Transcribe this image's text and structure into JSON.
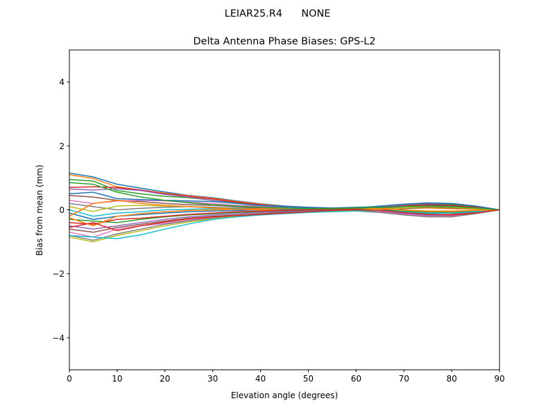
{
  "suptitle": "LEIAR25.R4      NONE",
  "chart_data": {
    "type": "line",
    "title": "Delta Antenna Phase Biases: GPS-L2",
    "xlabel": "Elevation angle (degrees)",
    "ylabel": "Bias from mean (mm)",
    "xlim": [
      0,
      90
    ],
    "ylim": [
      -5,
      5
    ],
    "xticks": [
      0,
      10,
      20,
      30,
      40,
      50,
      60,
      70,
      80,
      90
    ],
    "yticks": [
      -4,
      -2,
      0,
      2,
      4
    ],
    "grid": false,
    "legend": "none",
    "colors": [
      "#1f77b4",
      "#ff7f0e",
      "#2ca02c",
      "#d62728",
      "#9467bd",
      "#8c564b",
      "#e377c2",
      "#7f7f7f",
      "#bcbd22",
      "#17becf"
    ],
    "x": [
      0,
      5,
      10,
      15,
      20,
      25,
      30,
      35,
      40,
      45,
      50,
      55,
      60,
      65,
      70,
      75,
      80,
      85,
      90
    ],
    "series": [
      {
        "values": [
          1.15,
          1.03,
          0.8,
          0.68,
          0.56,
          0.45,
          0.38,
          0.28,
          0.19,
          0.12,
          0.08,
          0.06,
          0.08,
          0.1,
          0.14,
          0.18,
          0.17,
          0.1,
          0
        ]
      },
      {
        "values": [
          1.1,
          0.98,
          0.72,
          0.62,
          0.52,
          0.44,
          0.36,
          0.26,
          0.18,
          0.1,
          0.06,
          0.04,
          0.02,
          0.0,
          -0.04,
          -0.06,
          -0.05,
          -0.03,
          0
        ]
      },
      {
        "values": [
          0.95,
          0.9,
          0.6,
          0.5,
          0.42,
          0.38,
          0.3,
          0.22,
          0.14,
          0.08,
          0.04,
          0.02,
          0.04,
          0.08,
          0.12,
          0.2,
          0.18,
          0.1,
          0
        ]
      },
      {
        "values": [
          0.7,
          0.72,
          0.7,
          0.62,
          0.5,
          0.42,
          0.34,
          0.24,
          0.16,
          0.1,
          0.06,
          0.02,
          0.0,
          -0.06,
          -0.12,
          -0.16,
          -0.14,
          -0.08,
          0
        ]
      },
      {
        "values": [
          0.65,
          0.62,
          0.66,
          0.6,
          0.48,
          0.4,
          0.3,
          0.2,
          0.12,
          0.08,
          0.04,
          0.04,
          0.06,
          0.1,
          0.16,
          0.2,
          0.2,
          0.12,
          0
        ]
      },
      {
        "values": [
          0.45,
          0.4,
          0.3,
          0.26,
          0.2,
          0.16,
          0.14,
          0.1,
          0.06,
          0.04,
          0.02,
          0.0,
          0.02,
          0.04,
          0.06,
          0.08,
          0.06,
          0.04,
          0
        ]
      },
      {
        "values": [
          0.3,
          0.2,
          0.28,
          0.3,
          0.28,
          0.24,
          0.2,
          0.14,
          0.1,
          0.06,
          0.04,
          0.02,
          0.0,
          -0.02,
          -0.06,
          -0.1,
          -0.1,
          -0.06,
          0
        ]
      },
      {
        "values": [
          0.2,
          0.1,
          0.0,
          0.05,
          0.08,
          0.1,
          0.08,
          0.06,
          0.04,
          0.02,
          0.0,
          0.0,
          0.02,
          0.06,
          0.1,
          0.12,
          0.1,
          0.06,
          0
        ]
      },
      {
        "values": [
          0.1,
          -0.05,
          0.12,
          0.14,
          0.12,
          0.1,
          0.06,
          0.04,
          0.02,
          0.0,
          -0.02,
          -0.02,
          0.0,
          0.02,
          0.04,
          0.06,
          0.04,
          0.02,
          0
        ]
      },
      {
        "values": [
          0.0,
          -0.2,
          -0.1,
          -0.06,
          0.0,
          0.02,
          0.04,
          0.04,
          0.02,
          0.02,
          0.0,
          0.0,
          -0.02,
          -0.04,
          -0.08,
          -0.12,
          -0.1,
          -0.06,
          0
        ]
      },
      {
        "values": [
          -0.1,
          -0.3,
          -0.2,
          -0.15,
          -0.1,
          -0.06,
          -0.04,
          -0.02,
          0.0,
          0.0,
          0.02,
          0.02,
          0.04,
          0.06,
          0.1,
          0.14,
          0.12,
          0.06,
          0
        ]
      },
      {
        "values": [
          -0.2,
          0.2,
          0.3,
          0.2,
          0.14,
          0.1,
          0.06,
          0.02,
          0.0,
          -0.02,
          -0.02,
          0.0,
          0.02,
          0.04,
          0.06,
          0.06,
          0.04,
          0.02,
          0
        ]
      },
      {
        "values": [
          -0.3,
          -0.35,
          -0.4,
          -0.3,
          -0.22,
          -0.16,
          -0.12,
          -0.08,
          -0.06,
          -0.04,
          -0.02,
          0.0,
          0.02,
          0.0,
          -0.04,
          -0.08,
          -0.08,
          -0.04,
          0
        ]
      },
      {
        "values": [
          -0.4,
          -0.45,
          -0.3,
          -0.26,
          -0.2,
          -0.14,
          -0.1,
          -0.06,
          -0.04,
          -0.02,
          0.0,
          0.02,
          0.04,
          0.08,
          0.12,
          0.16,
          0.14,
          0.08,
          0
        ]
      },
      {
        "values": [
          -0.5,
          -0.6,
          -0.5,
          -0.4,
          -0.3,
          -0.22,
          -0.16,
          -0.12,
          -0.08,
          -0.06,
          -0.04,
          -0.02,
          0.0,
          -0.04,
          -0.1,
          -0.18,
          -0.18,
          -0.1,
          0
        ]
      },
      {
        "values": [
          -0.6,
          -0.7,
          -0.55,
          -0.45,
          -0.35,
          -0.26,
          -0.2,
          -0.16,
          -0.12,
          -0.08,
          -0.06,
          -0.04,
          -0.02,
          0.0,
          0.04,
          0.08,
          0.06,
          0.04,
          0
        ]
      },
      {
        "values": [
          -0.7,
          -0.85,
          -0.6,
          -0.5,
          -0.42,
          -0.32,
          -0.24,
          -0.18,
          -0.14,
          -0.1,
          -0.06,
          -0.04,
          -0.02,
          -0.06,
          -0.14,
          -0.2,
          -0.2,
          -0.12,
          0
        ]
      },
      {
        "values": [
          -0.8,
          -0.95,
          -0.75,
          -0.6,
          -0.45,
          -0.34,
          -0.26,
          -0.2,
          -0.16,
          -0.1,
          -0.06,
          -0.04,
          -0.04,
          -0.08,
          -0.16,
          -0.22,
          -0.22,
          -0.12,
          0
        ]
      },
      {
        "values": [
          -0.85,
          -1.0,
          -0.8,
          -0.65,
          -0.5,
          -0.38,
          -0.28,
          -0.2,
          -0.14,
          -0.1,
          -0.06,
          -0.04,
          -0.02,
          0.02,
          0.06,
          0.1,
          0.08,
          0.04,
          0
        ]
      },
      {
        "values": [
          -0.8,
          -0.85,
          -0.9,
          -0.78,
          -0.6,
          -0.44,
          -0.3,
          -0.22,
          -0.16,
          -0.12,
          -0.08,
          -0.06,
          -0.04,
          -0.02,
          -0.06,
          -0.1,
          -0.1,
          -0.06,
          0
        ]
      },
      {
        "values": [
          0.5,
          0.55,
          0.35,
          0.32,
          0.3,
          0.28,
          0.26,
          0.2,
          0.14,
          0.1,
          0.06,
          0.04,
          0.06,
          0.12,
          0.18,
          0.22,
          0.2,
          0.12,
          0
        ]
      },
      {
        "values": [
          -0.25,
          -0.5,
          -0.2,
          -0.12,
          -0.06,
          -0.02,
          0.0,
          0.02,
          0.04,
          0.04,
          0.04,
          0.04,
          0.06,
          0.04,
          0.0,
          -0.04,
          -0.04,
          -0.02,
          0
        ]
      },
      {
        "values": [
          0.85,
          0.8,
          0.55,
          0.4,
          0.3,
          0.22,
          0.16,
          0.12,
          0.08,
          0.06,
          0.04,
          0.04,
          0.06,
          0.08,
          0.1,
          0.12,
          0.1,
          0.06,
          0
        ]
      },
      {
        "values": [
          -0.55,
          -0.4,
          -0.65,
          -0.5,
          -0.38,
          -0.28,
          -0.22,
          -0.18,
          -0.14,
          -0.1,
          -0.06,
          -0.02,
          0.0,
          -0.02,
          -0.08,
          -0.14,
          -0.16,
          -0.1,
          0
        ]
      }
    ]
  }
}
